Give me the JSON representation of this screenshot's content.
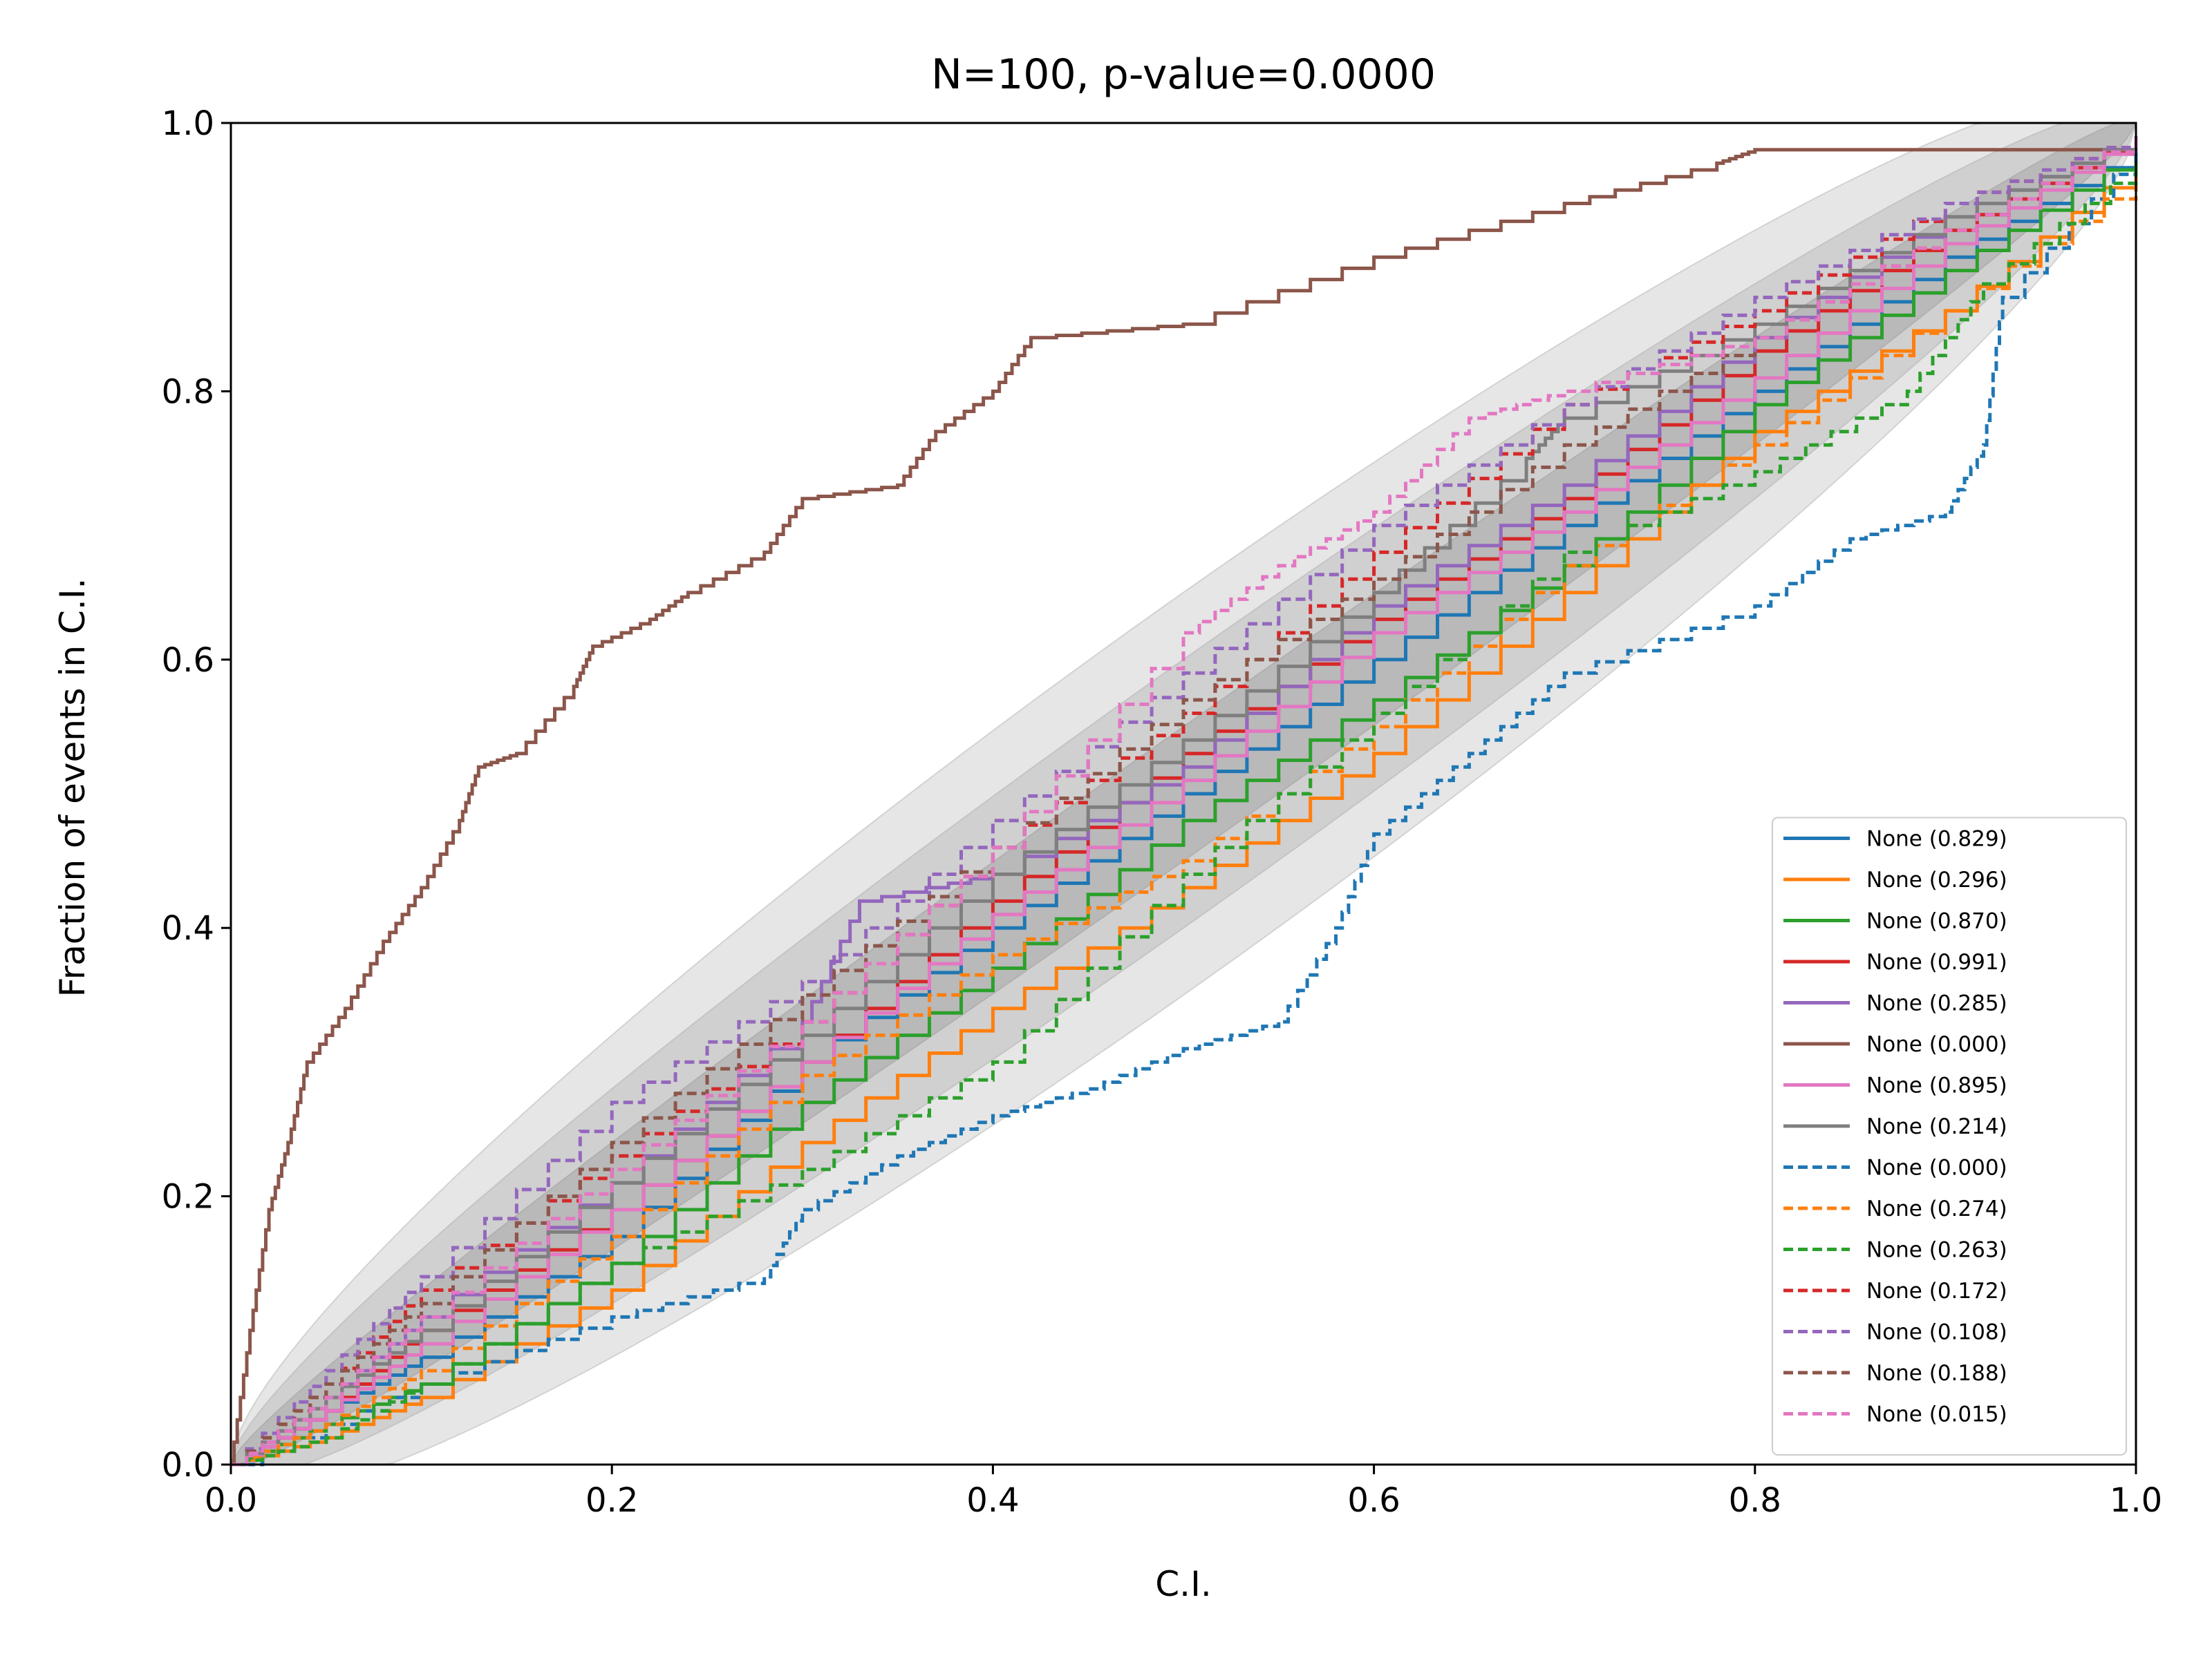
{
  "chart_data": {
    "type": "line",
    "title": "N=100, p-value=0.0000",
    "xlabel": "C.I.",
    "ylabel": "Fraction of events in C.I.",
    "xlim": [
      0,
      1
    ],
    "ylim": [
      0,
      1
    ],
    "xticks": [
      "0.0",
      "0.2",
      "0.4",
      "0.6",
      "0.8",
      "1.0"
    ],
    "yticks": [
      "0.0",
      "0.2",
      "0.4",
      "0.6",
      "0.8",
      "1.0"
    ],
    "grid": false,
    "legend_position": "lower-right",
    "band_colors": {
      "inner": "#b9b9b9",
      "middle": "#d0d0d0",
      "outer": "#e6e6e6"
    },
    "series": [
      {
        "name": "None (0.829)",
        "color": "#1f77b4",
        "style": "solid",
        "points": [
          [
            0,
            0
          ],
          [
            0.05,
            0.04
          ],
          [
            0.1,
            0.08
          ],
          [
            0.2,
            0.17
          ],
          [
            0.3,
            0.3
          ],
          [
            0.4,
            0.4
          ],
          [
            0.5,
            0.5
          ],
          [
            0.6,
            0.6
          ],
          [
            0.7,
            0.7
          ],
          [
            0.8,
            0.8
          ],
          [
            0.9,
            0.9
          ],
          [
            1,
            0.98
          ]
        ]
      },
      {
        "name": "None (0.296)",
        "color": "#ff7f0e",
        "style": "solid",
        "points": [
          [
            0,
            0
          ],
          [
            0.05,
            0.02
          ],
          [
            0.1,
            0.05
          ],
          [
            0.2,
            0.13
          ],
          [
            0.3,
            0.24
          ],
          [
            0.4,
            0.34
          ],
          [
            0.5,
            0.43
          ],
          [
            0.6,
            0.53
          ],
          [
            0.7,
            0.65
          ],
          [
            0.8,
            0.77
          ],
          [
            0.9,
            0.86
          ],
          [
            1,
            0.97
          ]
        ]
      },
      {
        "name": "None (0.870)",
        "color": "#2ca02c",
        "style": "solid",
        "points": [
          [
            0,
            0
          ],
          [
            0.05,
            0.03
          ],
          [
            0.1,
            0.06
          ],
          [
            0.2,
            0.15
          ],
          [
            0.3,
            0.27
          ],
          [
            0.4,
            0.37
          ],
          [
            0.5,
            0.48
          ],
          [
            0.6,
            0.57
          ],
          [
            0.7,
            0.67
          ],
          [
            0.8,
            0.79
          ],
          [
            0.9,
            0.89
          ],
          [
            1,
            0.98
          ]
        ]
      },
      {
        "name": "None (0.991)",
        "color": "#d62728",
        "style": "solid",
        "points": [
          [
            0,
            0
          ],
          [
            0.05,
            0.04
          ],
          [
            0.1,
            0.1
          ],
          [
            0.2,
            0.19
          ],
          [
            0.3,
            0.3
          ],
          [
            0.4,
            0.42
          ],
          [
            0.5,
            0.53
          ],
          [
            0.6,
            0.63
          ],
          [
            0.7,
            0.72
          ],
          [
            0.8,
            0.83
          ],
          [
            0.9,
            0.92
          ],
          [
            1,
            0.99
          ]
        ]
      },
      {
        "name": "None (0.285)",
        "color": "#9467bd",
        "style": "solid",
        "points": [
          [
            0,
            0
          ],
          [
            0.05,
            0.05
          ],
          [
            0.1,
            0.11
          ],
          [
            0.2,
            0.21
          ],
          [
            0.3,
            0.33
          ],
          [
            0.33,
            0.42
          ],
          [
            0.4,
            0.44
          ],
          [
            0.5,
            0.52
          ],
          [
            0.6,
            0.64
          ],
          [
            0.7,
            0.73
          ],
          [
            0.8,
            0.84
          ],
          [
            0.9,
            0.93
          ],
          [
            1,
            0.99
          ]
        ]
      },
      {
        "name": "None (0.000)",
        "color": "#8c564b",
        "style": "solid",
        "points": [
          [
            0,
            0
          ],
          [
            0.01,
            0.1
          ],
          [
            0.02,
            0.19
          ],
          [
            0.03,
            0.24
          ],
          [
            0.04,
            0.3
          ],
          [
            0.06,
            0.34
          ],
          [
            0.08,
            0.39
          ],
          [
            0.1,
            0.43
          ],
          [
            0.12,
            0.48
          ],
          [
            0.13,
            0.52
          ],
          [
            0.15,
            0.53
          ],
          [
            0.18,
            0.58
          ],
          [
            0.19,
            0.61
          ],
          [
            0.22,
            0.63
          ],
          [
            0.24,
            0.65
          ],
          [
            0.28,
            0.68
          ],
          [
            0.3,
            0.72
          ],
          [
            0.35,
            0.73
          ],
          [
            0.37,
            0.77
          ],
          [
            0.4,
            0.8
          ],
          [
            0.42,
            0.84
          ],
          [
            0.5,
            0.85
          ],
          [
            0.6,
            0.9
          ],
          [
            0.7,
            0.94
          ],
          [
            0.78,
            0.97
          ],
          [
            0.8,
            0.98
          ],
          [
            1,
            0.98
          ]
        ]
      },
      {
        "name": "None (0.895)",
        "color": "#e377c2",
        "style": "solid",
        "points": [
          [
            0,
            0
          ],
          [
            0.05,
            0.04
          ],
          [
            0.1,
            0.09
          ],
          [
            0.2,
            0.19
          ],
          [
            0.3,
            0.3
          ],
          [
            0.4,
            0.41
          ],
          [
            0.5,
            0.51
          ],
          [
            0.6,
            0.62
          ],
          [
            0.7,
            0.71
          ],
          [
            0.8,
            0.81
          ],
          [
            0.9,
            0.91
          ],
          [
            1,
            0.99
          ]
        ]
      },
      {
        "name": "None (0.214)",
        "color": "#7f7f7f",
        "style": "solid",
        "points": [
          [
            0,
            0
          ],
          [
            0.05,
            0.05
          ],
          [
            0.1,
            0.1
          ],
          [
            0.2,
            0.21
          ],
          [
            0.3,
            0.32
          ],
          [
            0.4,
            0.44
          ],
          [
            0.5,
            0.54
          ],
          [
            0.6,
            0.65
          ],
          [
            0.68,
            0.75
          ],
          [
            0.7,
            0.78
          ],
          [
            0.8,
            0.85
          ],
          [
            0.9,
            0.93
          ],
          [
            1,
            0.99
          ]
        ]
      },
      {
        "name": "None (0.000)",
        "color": "#1f77b4",
        "style": "dashed",
        "points": [
          [
            0,
            0
          ],
          [
            0.1,
            0.06
          ],
          [
            0.2,
            0.11
          ],
          [
            0.28,
            0.14
          ],
          [
            0.3,
            0.19
          ],
          [
            0.35,
            0.23
          ],
          [
            0.4,
            0.26
          ],
          [
            0.45,
            0.28
          ],
          [
            0.5,
            0.31
          ],
          [
            0.55,
            0.33
          ],
          [
            0.58,
            0.4
          ],
          [
            0.6,
            0.47
          ],
          [
            0.65,
            0.53
          ],
          [
            0.7,
            0.59
          ],
          [
            0.8,
            0.64
          ],
          [
            0.85,
            0.69
          ],
          [
            0.9,
            0.71
          ],
          [
            0.92,
            0.76
          ],
          [
            0.93,
            0.87
          ],
          [
            1,
            0.98
          ]
        ]
      },
      {
        "name": "None (0.274)",
        "color": "#ff7f0e",
        "style": "dashed",
        "points": [
          [
            0,
            0
          ],
          [
            0.05,
            0.03
          ],
          [
            0.1,
            0.07
          ],
          [
            0.2,
            0.17
          ],
          [
            0.3,
            0.29
          ],
          [
            0.4,
            0.38
          ],
          [
            0.5,
            0.45
          ],
          [
            0.6,
            0.55
          ],
          [
            0.7,
            0.67
          ],
          [
            0.8,
            0.76
          ],
          [
            0.9,
            0.86
          ],
          [
            1,
            0.96
          ]
        ]
      },
      {
        "name": "None (0.263)",
        "color": "#2ca02c",
        "style": "dashed",
        "points": [
          [
            0,
            0
          ],
          [
            0.05,
            0.02
          ],
          [
            0.1,
            0.06
          ],
          [
            0.2,
            0.15
          ],
          [
            0.3,
            0.22
          ],
          [
            0.4,
            0.3
          ],
          [
            0.5,
            0.44
          ],
          [
            0.6,
            0.56
          ],
          [
            0.7,
            0.68
          ],
          [
            0.8,
            0.74
          ],
          [
            0.88,
            0.8
          ],
          [
            0.92,
            0.88
          ],
          [
            1,
            0.97
          ]
        ]
      },
      {
        "name": "None (0.172)",
        "color": "#d62728",
        "style": "dashed",
        "points": [
          [
            0,
            0
          ],
          [
            0.05,
            0.06
          ],
          [
            0.1,
            0.13
          ],
          [
            0.2,
            0.23
          ],
          [
            0.3,
            0.33
          ],
          [
            0.4,
            0.46
          ],
          [
            0.5,
            0.56
          ],
          [
            0.6,
            0.68
          ],
          [
            0.7,
            0.79
          ],
          [
            0.8,
            0.86
          ],
          [
            0.9,
            0.94
          ],
          [
            1,
            0.99
          ]
        ]
      },
      {
        "name": "None (0.108)",
        "color": "#9467bd",
        "style": "dashed",
        "points": [
          [
            0,
            0
          ],
          [
            0.05,
            0.07
          ],
          [
            0.1,
            0.14
          ],
          [
            0.2,
            0.27
          ],
          [
            0.3,
            0.36
          ],
          [
            0.4,
            0.48
          ],
          [
            0.5,
            0.59
          ],
          [
            0.6,
            0.7
          ],
          [
            0.7,
            0.79
          ],
          [
            0.8,
            0.87
          ],
          [
            0.9,
            0.94
          ],
          [
            1,
            0.99
          ]
        ]
      },
      {
        "name": "None (0.188)",
        "color": "#8c564b",
        "style": "dashed",
        "points": [
          [
            0,
            0
          ],
          [
            0.05,
            0.06
          ],
          [
            0.1,
            0.12
          ],
          [
            0.2,
            0.24
          ],
          [
            0.3,
            0.35
          ],
          [
            0.4,
            0.46
          ],
          [
            0.5,
            0.57
          ],
          [
            0.6,
            0.66
          ],
          [
            0.7,
            0.76
          ],
          [
            0.8,
            0.84
          ],
          [
            0.9,
            0.92
          ],
          [
            1,
            0.99
          ]
        ]
      },
      {
        "name": "None (0.015)",
        "color": "#e377c2",
        "style": "dashed",
        "points": [
          [
            0,
            0
          ],
          [
            0.05,
            0.05
          ],
          [
            0.1,
            0.11
          ],
          [
            0.2,
            0.22
          ],
          [
            0.3,
            0.33
          ],
          [
            0.4,
            0.46
          ],
          [
            0.5,
            0.62
          ],
          [
            0.55,
            0.67
          ],
          [
            0.6,
            0.71
          ],
          [
            0.65,
            0.78
          ],
          [
            0.7,
            0.8
          ],
          [
            0.8,
            0.84
          ],
          [
            0.9,
            0.92
          ],
          [
            1,
            0.99
          ]
        ]
      }
    ]
  }
}
